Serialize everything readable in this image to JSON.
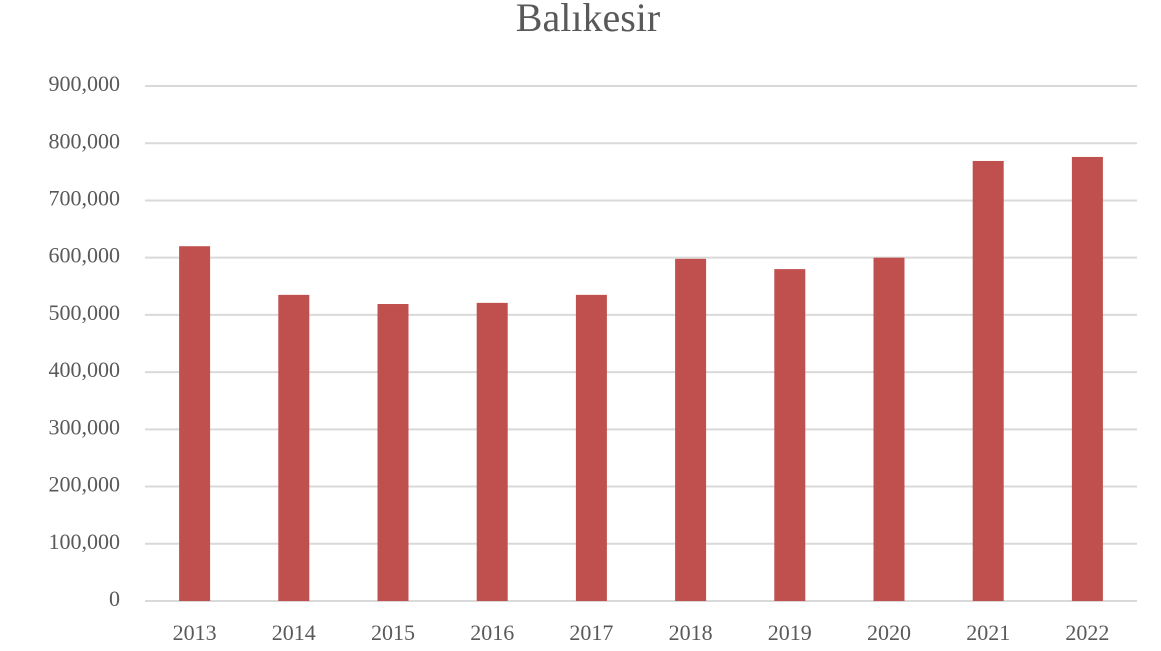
{
  "chart_data": {
    "type": "bar",
    "title": "Balıkesir",
    "categories": [
      "2013",
      "2014",
      "2015",
      "2016",
      "2017",
      "2018",
      "2019",
      "2020",
      "2021",
      "2022"
    ],
    "values": [
      620000,
      535000,
      519000,
      521000,
      535000,
      598000,
      580000,
      600000,
      769000,
      776000
    ],
    "color": "#c0504d",
    "ylim": [
      0,
      900000
    ],
    "yticks": [
      0,
      {
        "value": 100000,
        "label": "100,000"
      },
      {
        "value": 200000,
        "label": "200,000"
      },
      {
        "value": 300000,
        "label": "300,000"
      },
      {
        "value": 400000,
        "label": "400,000"
      },
      {
        "value": 500000,
        "label": "500,000"
      },
      {
        "value": 600000,
        "label": "600,000"
      },
      {
        "value": 700000,
        "label": "700,000"
      },
      {
        "value": 800000,
        "label": "800,000"
      },
      {
        "value": 900000,
        "label": "900,000"
      }
    ],
    "grid": true
  }
}
